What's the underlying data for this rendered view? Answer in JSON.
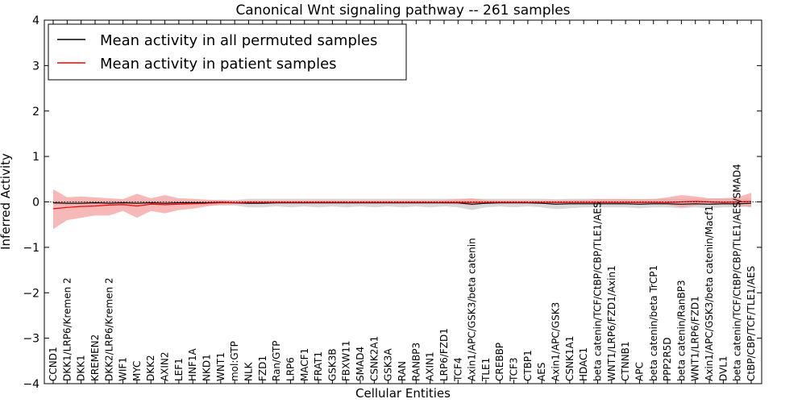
{
  "chart_data": {
    "type": "line",
    "title": "Canonical Wnt signaling pathway -- 261 samples",
    "xlabel": "Cellular Entities",
    "ylabel": "Inferred Activity",
    "ylim": [
      -4,
      4
    ],
    "yticks": [
      "−4",
      "−3",
      "−2",
      "−1",
      "0",
      "1",
      "2",
      "3",
      "4"
    ],
    "grid": false,
    "legend_position": "top-left",
    "categories": [
      "CCND1",
      "DKK1/LRP6/Kremen 2",
      "DKK1",
      "KREMEN2",
      "DKK2/LRP6/Kremen 2",
      "WIF1",
      "MYC",
      "DKK2",
      "AXIN2",
      "LEF1",
      "HNF1A",
      "NKD1",
      "WNT1",
      "mol:GTP",
      "NLK",
      "FZD1",
      "Ran/GTP",
      "LRP6",
      "MACF1",
      "FRAT1",
      "GSK3B",
      "FBXW11",
      "SMAD4",
      "CSNK2A1",
      "GSK3A",
      "RAN",
      "RANBP3",
      "AXIN1",
      "LRP6/FZD1",
      "TCF4",
      "Axin1/APC/GSK3/beta catenin",
      "TLE1",
      "CREBBP",
      "TCF3",
      "CTBP1",
      "AES",
      "Axin1/APC/GSK3",
      "CSNK1A1",
      "HDAC1",
      "beta catenin/TCF/CtBP/CBP/TLE1/AES",
      "WNT1/LRP6/FZD1/Axin1",
      "CTNNB1",
      "APC",
      "beta catenin/beta TrCP1",
      "PPP2R5D",
      "beta catenin/RanBP3",
      "WNT1/LRP6/FZD1",
      "Axin1/APC/GSK3/beta catenin/Macf1",
      "DVL1",
      "beta catenin/TCF/CtBP/CBP/TLE1/AES/SMAD4",
      "CtBP/CBP/TCF/TLE1/AES"
    ],
    "series": [
      {
        "name": "Mean activity in all permuted samples",
        "color": "#000000",
        "band_color": "#c8c8c8",
        "values": [
          -0.02,
          -0.03,
          -0.03,
          -0.02,
          -0.03,
          -0.02,
          -0.03,
          -0.02,
          -0.03,
          -0.02,
          -0.02,
          -0.02,
          -0.01,
          -0.02,
          -0.03,
          -0.03,
          -0.02,
          -0.02,
          -0.02,
          -0.02,
          -0.02,
          -0.02,
          -0.02,
          -0.02,
          -0.02,
          -0.02,
          -0.02,
          -0.02,
          -0.02,
          -0.02,
          -0.05,
          -0.03,
          -0.02,
          -0.02,
          -0.02,
          -0.03,
          -0.05,
          -0.04,
          -0.04,
          -0.04,
          -0.04,
          -0.04,
          -0.05,
          -0.04,
          -0.04,
          -0.05,
          -0.04,
          -0.05,
          -0.04,
          -0.04,
          -0.03
        ],
        "lower": [
          -0.07,
          -0.08,
          -0.08,
          -0.07,
          -0.08,
          -0.07,
          -0.08,
          -0.07,
          -0.08,
          -0.07,
          -0.07,
          -0.08,
          -0.08,
          -0.08,
          -0.12,
          -0.12,
          -0.1,
          -0.12,
          -0.1,
          -0.12,
          -0.1,
          -0.12,
          -0.1,
          -0.12,
          -0.1,
          -0.12,
          -0.1,
          -0.12,
          -0.1,
          -0.12,
          -0.18,
          -0.12,
          -0.1,
          -0.12,
          -0.1,
          -0.12,
          -0.16,
          -0.14,
          -0.12,
          -0.12,
          -0.12,
          -0.12,
          -0.14,
          -0.12,
          -0.12,
          -0.14,
          -0.12,
          -0.14,
          -0.12,
          -0.12,
          -0.1
        ],
        "upper": [
          0.02,
          0.02,
          0.02,
          0.02,
          0.02,
          0.02,
          0.02,
          0.02,
          0.02,
          0.02,
          0.02,
          0.03,
          0.05,
          0.04,
          0.07,
          0.07,
          0.07,
          0.07,
          0.07,
          0.07,
          0.07,
          0.07,
          0.07,
          0.07,
          0.07,
          0.07,
          0.07,
          0.07,
          0.07,
          0.07,
          0.07,
          0.07,
          0.07,
          0.07,
          0.07,
          0.07,
          0.06,
          0.07,
          0.07,
          0.07,
          0.07,
          0.07,
          0.06,
          0.07,
          0.07,
          0.06,
          0.07,
          0.06,
          0.07,
          0.07,
          0.07
        ]
      },
      {
        "name": "Mean activity in patient samples",
        "color": "#ff0000",
        "band_color": "#f4a0a0",
        "values": [
          -0.15,
          -0.12,
          -0.1,
          -0.09,
          -0.07,
          -0.06,
          -0.09,
          -0.05,
          -0.06,
          -0.05,
          -0.04,
          -0.03,
          -0.02,
          -0.02,
          -0.01,
          -0.01,
          -0.01,
          -0.01,
          -0.01,
          -0.01,
          -0.01,
          -0.01,
          -0.01,
          -0.01,
          -0.01,
          -0.01,
          -0.01,
          -0.01,
          -0.01,
          -0.01,
          -0.01,
          -0.01,
          -0.01,
          -0.01,
          -0.01,
          -0.01,
          -0.01,
          -0.01,
          -0.01,
          -0.01,
          -0.01,
          -0.01,
          -0.01,
          -0.01,
          -0.01,
          0.0,
          0.01,
          0.0,
          -0.01,
          0.0,
          0.01
        ],
        "lower": [
          -0.6,
          -0.4,
          -0.35,
          -0.3,
          -0.3,
          -0.2,
          -0.35,
          -0.2,
          -0.25,
          -0.18,
          -0.15,
          -0.1,
          -0.06,
          -0.05,
          -0.05,
          -0.04,
          -0.04,
          -0.04,
          -0.04,
          -0.04,
          -0.04,
          -0.04,
          -0.04,
          -0.04,
          -0.04,
          -0.04,
          -0.04,
          -0.04,
          -0.04,
          -0.05,
          -0.08,
          -0.04,
          -0.04,
          -0.04,
          -0.04,
          -0.04,
          -0.05,
          -0.05,
          -0.05,
          -0.05,
          -0.05,
          -0.05,
          -0.05,
          -0.05,
          -0.06,
          -0.12,
          -0.08,
          -0.06,
          -0.06,
          -0.08,
          -0.12
        ],
        "upper": [
          0.28,
          0.1,
          0.12,
          0.1,
          0.08,
          0.06,
          0.18,
          0.08,
          0.15,
          0.08,
          0.07,
          0.05,
          0.04,
          0.03,
          0.03,
          0.03,
          0.03,
          0.03,
          0.03,
          0.03,
          0.03,
          0.03,
          0.03,
          0.03,
          0.03,
          0.03,
          0.03,
          0.03,
          0.04,
          0.06,
          0.08,
          0.04,
          0.03,
          0.03,
          0.03,
          0.03,
          0.03,
          0.04,
          0.04,
          0.06,
          0.06,
          0.06,
          0.06,
          0.06,
          0.1,
          0.15,
          0.12,
          0.08,
          0.08,
          0.1,
          0.2
        ]
      }
    ]
  }
}
